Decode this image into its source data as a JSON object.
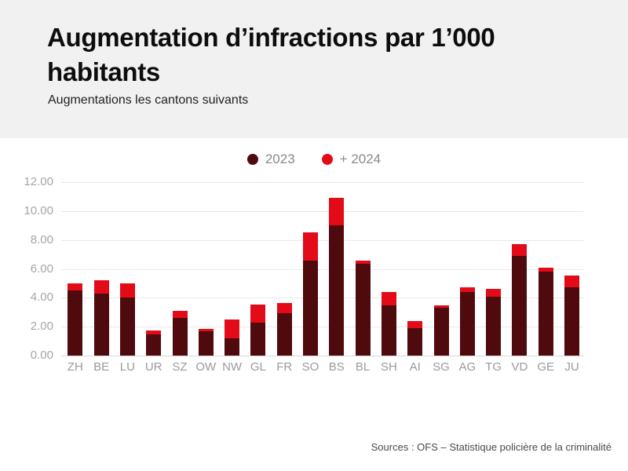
{
  "header": {
    "title": "Augmentation d’infractions par 1’000 habitants",
    "subtitle": "Augmentations les cantons suivants"
  },
  "legend": {
    "items": [
      {
        "label": "2023",
        "color": "#4f0a0e"
      },
      {
        "label": "+ 2024",
        "color": "#e30b17"
      }
    ]
  },
  "chart_data": {
    "type": "bar",
    "stacked": true,
    "title": "Augmentation d’infractions par 1’000 habitants",
    "xlabel": "",
    "ylabel": "",
    "ylim": [
      0,
      12
    ],
    "yticks": [
      0,
      2,
      4,
      6,
      8,
      10,
      12
    ],
    "ytick_labels": [
      "0.00",
      "2.00",
      "4.00",
      "6.00",
      "8.00",
      "10.00",
      "12.00"
    ],
    "grid": true,
    "legend_position": "top-center",
    "categories": [
      "ZH",
      "BE",
      "LU",
      "UR",
      "SZ",
      "OW",
      "NW",
      "GL",
      "FR",
      "SO",
      "BS",
      "BL",
      "SH",
      "AI",
      "SG",
      "AG",
      "TG",
      "VD",
      "GE",
      "JU"
    ],
    "series": [
      {
        "name": "2023",
        "color": "#4f0a0e",
        "values": [
          4.5,
          4.3,
          4.0,
          1.45,
          2.6,
          1.7,
          1.2,
          2.3,
          2.95,
          6.55,
          9.0,
          6.35,
          3.5,
          1.9,
          3.3,
          4.4,
          4.05,
          6.9,
          5.8,
          4.75
        ]
      },
      {
        "name": "+ 2024",
        "color": "#e30b17",
        "values": [
          0.5,
          0.9,
          1.0,
          0.3,
          0.5,
          0.15,
          1.3,
          1.25,
          0.7,
          1.95,
          1.9,
          0.2,
          0.9,
          0.5,
          0.2,
          0.35,
          0.55,
          0.8,
          0.3,
          0.8
        ]
      }
    ]
  },
  "footer": {
    "source": "Sources : OFS – Statistique policière de la criminalité"
  },
  "colors": {
    "header_background": "#f1f1f1",
    "body_background": "#ffffff",
    "series_2023": "#4f0a0e",
    "series_2024": "#e30b17",
    "axis_text": "#9a9a9a",
    "gridline": "#e9e9e9"
  }
}
